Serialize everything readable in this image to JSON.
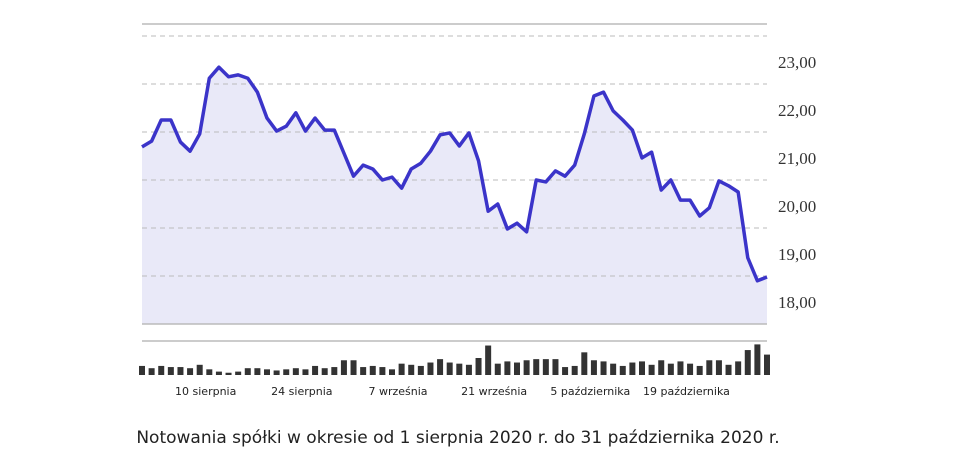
{
  "chart_data": [
    {
      "type": "line",
      "color": "#3b34c9",
      "area_color": "#e9e9f8",
      "values": [
        21.69,
        21.81,
        22.25,
        22.25,
        21.79,
        21.6,
        21.96,
        23.12,
        23.35,
        23.15,
        23.19,
        23.12,
        22.83,
        22.29,
        22.02,
        22.12,
        22.4,
        22.02,
        22.29,
        22.04,
        22.04,
        21.56,
        21.08,
        21.31,
        21.23,
        21.0,
        21.06,
        20.83,
        21.23,
        21.35,
        21.6,
        21.94,
        21.98,
        21.71,
        21.98,
        21.4,
        20.35,
        20.5,
        19.98,
        20.1,
        19.92,
        21.0,
        20.96,
        21.19,
        21.08,
        21.31,
        21.96,
        22.75,
        22.83,
        22.44,
        22.25,
        22.04,
        21.46,
        21.58,
        20.79,
        21.0,
        20.58,
        20.58,
        20.25,
        20.42,
        20.98,
        20.88,
        20.75,
        19.38,
        18.9,
        18.98
      ],
      "ylim": [
        18,
        24.25
      ],
      "yticks": [
        {
          "value": 18,
          "label": "18,00"
        },
        {
          "value": 19,
          "label": "19,00"
        },
        {
          "value": 20,
          "label": "20,00"
        },
        {
          "value": 21,
          "label": "21,00"
        },
        {
          "value": 22,
          "label": "22,00"
        },
        {
          "value": 23,
          "label": "23,00"
        },
        {
          "value": 24,
          "label": null
        }
      ],
      "grid": true
    },
    {
      "type": "bar",
      "color": "#333333",
      "categories": [
        null,
        null,
        null,
        null,
        null,
        null,
        "10 sierpnia",
        null,
        null,
        null,
        null,
        null,
        null,
        null,
        null,
        null,
        "24 sierpnia",
        null,
        null,
        null,
        null,
        null,
        null,
        null,
        null,
        null,
        "7 września",
        null,
        null,
        null,
        null,
        null,
        null,
        null,
        null,
        null,
        "21 września",
        null,
        null,
        null,
        null,
        null,
        null,
        null,
        null,
        null,
        "5 października",
        null,
        null,
        null,
        null,
        null,
        null,
        null,
        null,
        null,
        "19 października",
        null,
        null,
        null,
        null,
        null,
        null,
        null,
        null,
        null
      ],
      "values": [
        8,
        6,
        8,
        7,
        7,
        6,
        9,
        5,
        3,
        2,
        3,
        6,
        6,
        5,
        4,
        5,
        6,
        5,
        8,
        6,
        7,
        13,
        13,
        7,
        8,
        7,
        5,
        10,
        9,
        8,
        11,
        14,
        11,
        10,
        9,
        15,
        26,
        10,
        12,
        11,
        13,
        14,
        14,
        14,
        7,
        8,
        20,
        13,
        12,
        10,
        8,
        11,
        12,
        9,
        13,
        10,
        12,
        10,
        8,
        13,
        13,
        9,
        12,
        22,
        27,
        18
      ],
      "ylim": [
        0,
        30
      ]
    }
  ],
  "caption": "Notowania spółki w okresie od 1 sierpnia 2020 r. do 31 października 2020 r."
}
